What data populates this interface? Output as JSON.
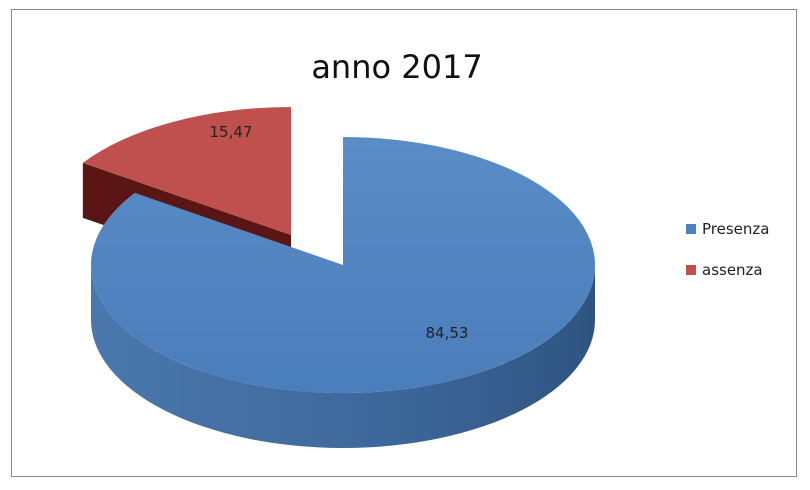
{
  "chart_data": {
    "type": "pie",
    "style": "3d-exploded",
    "title": "anno 2017",
    "slices": [
      {
        "label": "Presenza",
        "value": 84.53,
        "value_label": "84,53",
        "color": "#4f81bd",
        "side_color": "#3a6595"
      },
      {
        "label": "assenza",
        "value": 15.47,
        "value_label": "15,47",
        "color": "#c0504d",
        "side_color": "#6e1c1a"
      }
    ],
    "legend": {
      "position": "right"
    }
  }
}
